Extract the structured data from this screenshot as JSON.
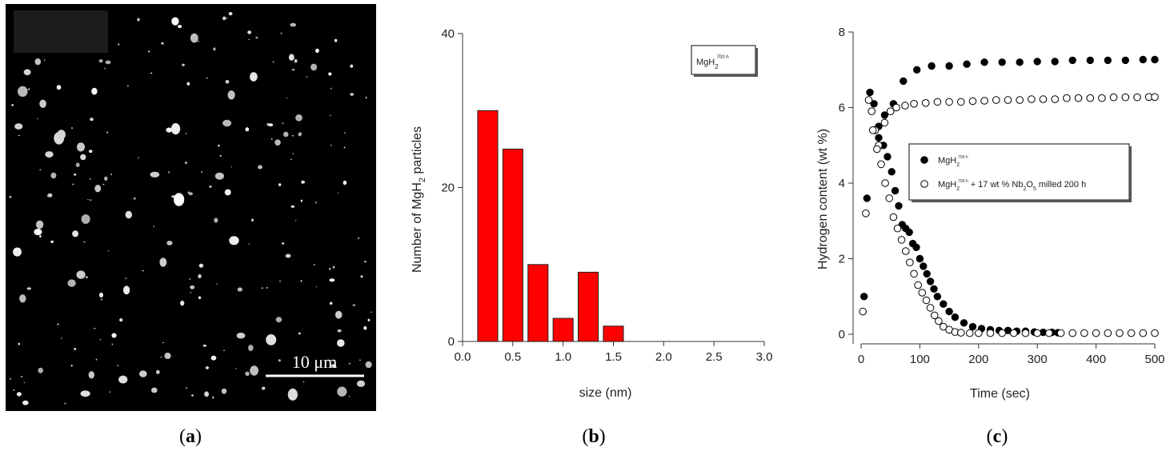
{
  "panels": {
    "a": {
      "caption_open": "(",
      "caption_letter": "a",
      "caption_close": ")",
      "scale_bar_label": "10 μm"
    },
    "b": {
      "caption_open": "(",
      "caption_letter": "b",
      "caption_close": ")"
    },
    "c": {
      "caption_open": "(",
      "caption_letter": "c",
      "caption_close": ")"
    }
  },
  "chart_data": [
    {
      "panel": "b",
      "type": "bar",
      "xlabel": "size (nm)",
      "ylabel_prefix": "Number of MgH",
      "ylabel_sub": "2",
      "ylabel_suffix": " particles",
      "legend_main": "MgH",
      "legend_sub": "2",
      "legend_sup": "700 h",
      "x_ticks": [
        "0.0",
        "0.5",
        "1.0",
        "1.5",
        "2.0",
        "2.5",
        "3.0"
      ],
      "y_ticks": [
        "0",
        "20",
        "40"
      ],
      "xlim": [
        0,
        3
      ],
      "ylim": [
        0,
        40
      ],
      "bar_color": "#ff0000",
      "bar_width": 0.2,
      "x": [
        0.25,
        0.5,
        0.75,
        1.0,
        1.25,
        1.5
      ],
      "values": [
        30,
        25,
        10,
        3,
        9,
        2
      ]
    },
    {
      "panel": "c",
      "type": "scatter",
      "xlabel": "Time (sec)",
      "ylabel": "Hydrogen content (wt %)",
      "x_ticks": [
        "0",
        "100",
        "200",
        "300",
        "400",
        "500"
      ],
      "y_ticks": [
        "0",
        "2",
        "4",
        "6",
        "8"
      ],
      "xlim": [
        0,
        500
      ],
      "ylim": [
        0,
        8
      ],
      "series": [
        {
          "name_main": "MgH",
          "name_sub": "2",
          "name_sup": "700 h",
          "name_rest": "",
          "marker": "filled",
          "absorption_x": [
            5,
            10,
            15,
            22,
            30,
            40,
            55,
            72,
            95,
            120,
            150,
            180,
            210,
            240,
            270,
            300,
            330,
            360,
            390,
            420,
            450,
            480,
            500
          ],
          "absorption_y": [
            1.0,
            3.6,
            6.4,
            6.1,
            5.5,
            5.8,
            6.1,
            6.7,
            7.0,
            7.1,
            7.1,
            7.15,
            7.2,
            7.2,
            7.2,
            7.22,
            7.22,
            7.25,
            7.25,
            7.25,
            7.25,
            7.27,
            7.27
          ],
          "desorption_x": [
            30,
            38,
            45,
            52,
            58,
            64,
            70,
            76,
            82,
            88,
            94,
            100,
            106,
            112,
            118,
            124,
            130,
            140,
            150,
            160,
            175,
            190,
            205,
            220,
            235,
            250,
            265,
            280,
            295,
            310,
            325,
            335
          ],
          "desorption_y": [
            5.2,
            5.0,
            4.7,
            4.3,
            3.8,
            3.4,
            2.9,
            2.8,
            2.7,
            2.4,
            2.3,
            2.0,
            1.8,
            1.6,
            1.4,
            1.2,
            1.0,
            0.8,
            0.6,
            0.45,
            0.3,
            0.2,
            0.15,
            0.12,
            0.1,
            0.1,
            0.08,
            0.08,
            0.06,
            0.05,
            0.05,
            0.04
          ]
        },
        {
          "name_main": "MgH",
          "name_sub": "2",
          "name_sup": "700 h",
          "name_rest": " + 17 wt % Nb",
          "name_sub2": "2",
          "name_rest2": "O",
          "name_sub3": "5",
          "name_rest3": " milled 200 h",
          "marker": "open",
          "absorption_x": [
            3,
            8,
            13,
            18,
            24,
            30,
            40,
            50,
            60,
            75,
            90,
            110,
            130,
            150,
            170,
            190,
            210,
            230,
            250,
            270,
            290,
            310,
            330,
            350,
            370,
            390,
            410,
            430,
            450,
            470,
            490,
            500
          ],
          "absorption_y": [
            0.6,
            3.2,
            6.2,
            5.9,
            5.4,
            5.0,
            5.6,
            5.9,
            6.0,
            6.05,
            6.1,
            6.12,
            6.15,
            6.15,
            6.15,
            6.17,
            6.18,
            6.2,
            6.2,
            6.2,
            6.22,
            6.22,
            6.22,
            6.25,
            6.25,
            6.25,
            6.25,
            6.27,
            6.27,
            6.27,
            6.28,
            6.28
          ],
          "desorption_x": [
            20,
            27,
            34,
            41,
            48,
            55,
            62,
            69,
            76,
            83,
            90,
            97,
            104,
            111,
            118,
            125,
            132,
            140,
            150,
            160,
            170,
            185,
            200,
            220,
            240,
            260,
            280,
            300,
            320,
            340,
            360,
            380,
            400,
            420,
            440,
            460,
            480,
            500
          ],
          "desorption_y": [
            5.4,
            4.9,
            4.5,
            4.0,
            3.6,
            3.1,
            2.8,
            2.5,
            2.2,
            1.9,
            1.6,
            1.3,
            1.1,
            0.9,
            0.7,
            0.5,
            0.35,
            0.2,
            0.12,
            0.06,
            0.04,
            0.03,
            0.03,
            0.03,
            0.03,
            0.03,
            0.03,
            0.03,
            0.03,
            0.03,
            0.03,
            0.03,
            0.03,
            0.03,
            0.03,
            0.03,
            0.03,
            0.03
          ]
        }
      ]
    }
  ]
}
